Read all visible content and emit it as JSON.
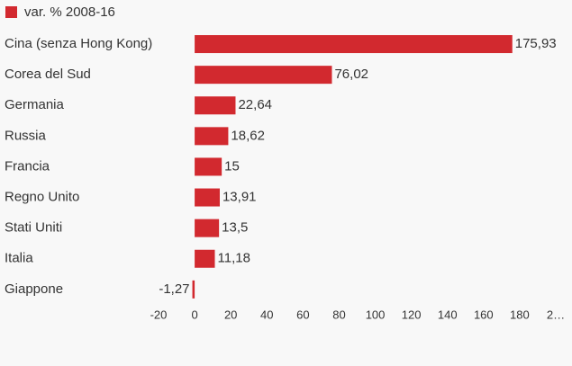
{
  "chart_data": {
    "type": "bar",
    "orientation": "horizontal",
    "categories": [
      "Cina (senza Hong Kong)",
      "Corea del Sud",
      "Germania",
      "Russia",
      "Francia",
      "Regno Unito",
      "Stati Uniti",
      "Italia",
      "Giappone"
    ],
    "series": [
      {
        "name": "var. % 2008-16",
        "color": "#d2292f",
        "values": [
          175.93,
          76.02,
          22.64,
          18.62,
          15,
          13.91,
          13.5,
          11.18,
          -1.27
        ],
        "value_labels": [
          "175,93",
          "76,02",
          "22,64",
          "18,62",
          "15",
          "13,91",
          "13,5",
          "11,18",
          "-1,27"
        ]
      }
    ],
    "xlim": [
      -20,
      200
    ],
    "xticks": [
      -20,
      0,
      20,
      40,
      60,
      80,
      100,
      120,
      140,
      160,
      180,
      {
        "value": 200,
        "label": "2…"
      }
    ],
    "legend": "top-left"
  }
}
